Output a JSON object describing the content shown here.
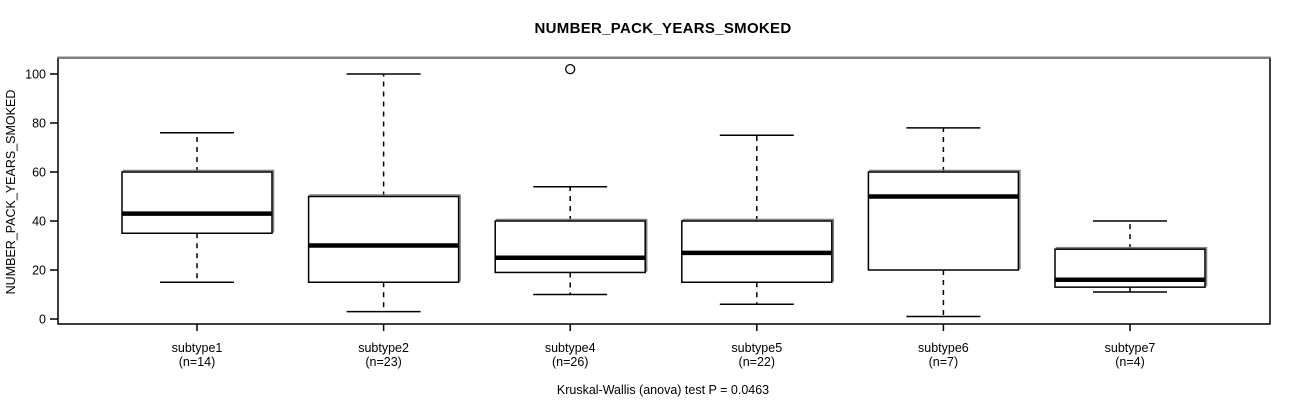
{
  "chart_data": {
    "type": "boxplot",
    "title": "NUMBER_PACK_YEARS_SMOKED",
    "ylabel": "NUMBER_PACK_YEARS_SMOKED",
    "xlabel": "",
    "caption": "Kruskal-Wallis (anova) test P = 0.0463",
    "ylim": [
      0,
      100
    ],
    "yticks": [
      0,
      20,
      40,
      60,
      80,
      100
    ],
    "grid": false,
    "legend": "none",
    "groups": [
      {
        "label": "subtype1",
        "sublabel": "(n=14)",
        "n": 14,
        "whisker_low": 15,
        "q1": 35,
        "median": 43,
        "q3": 60,
        "whisker_high": 76,
        "outliers": []
      },
      {
        "label": "subtype2",
        "sublabel": "(n=23)",
        "n": 23,
        "whisker_low": 3,
        "q1": 15,
        "median": 30,
        "q3": 50,
        "whisker_high": 100,
        "outliers": []
      },
      {
        "label": "subtype4",
        "sublabel": "(n=26)",
        "n": 26,
        "whisker_low": 10,
        "q1": 19,
        "median": 25,
        "q3": 40,
        "whisker_high": 54,
        "outliers": [
          102
        ]
      },
      {
        "label": "subtype5",
        "sublabel": "(n=22)",
        "n": 22,
        "whisker_low": 6,
        "q1": 15,
        "median": 27,
        "q3": 40,
        "whisker_high": 75,
        "outliers": []
      },
      {
        "label": "subtype6",
        "sublabel": "(n=7)",
        "n": 7,
        "whisker_low": 1,
        "q1": 20,
        "median": 50,
        "q3": 60,
        "whisker_high": 78,
        "outliers": []
      },
      {
        "label": "subtype7",
        "sublabel": "(n=4)",
        "n": 4,
        "whisker_low": 11,
        "q1": 13,
        "median": 16,
        "q3": 28.5,
        "whisker_high": 40,
        "outliers": []
      }
    ],
    "colors": {
      "box_fill": "#ffffff",
      "box_border": "#000000",
      "median": "#000000",
      "whisker": "#000000",
      "frame": "#000000",
      "frame_shadow": "#808080",
      "background": "#ffffff"
    }
  }
}
